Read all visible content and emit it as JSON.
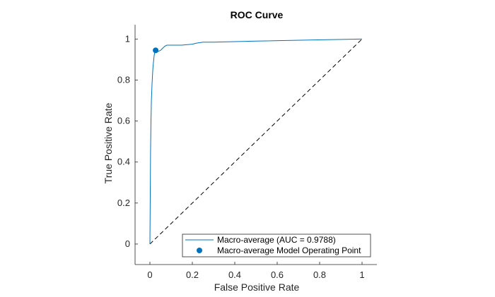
{
  "chart_data": {
    "type": "line",
    "title": "ROC Curve",
    "xlabel": "False Positive Rate",
    "ylabel": "True Positive Rate",
    "xlim": [
      -0.07,
      1.07
    ],
    "ylim": [
      -0.1,
      1.07
    ],
    "x_ticks": [
      0,
      0.2,
      0.4,
      0.6,
      0.8,
      1
    ],
    "x_tick_labels": [
      "0",
      "0.2",
      "0.4",
      "0.6",
      "0.8",
      "1"
    ],
    "y_ticks": [
      0,
      0.2,
      0.4,
      0.6,
      0.8,
      1
    ],
    "y_tick_labels": [
      "0",
      "0.2",
      "0.4",
      "0.6",
      "0.8",
      "1"
    ],
    "grid": false,
    "legend_position": "bottom-right",
    "series": [
      {
        "name": "Macro-average (AUC = 0.9788)",
        "kind": "line",
        "color": "#0072BD",
        "x": [
          0,
          0.003,
          0.005,
          0.007,
          0.01,
          0.013,
          0.015,
          0.018,
          0.02,
          0.025,
          0.03,
          0.04,
          0.05,
          0.06,
          0.07,
          0.08,
          0.1,
          0.15,
          0.2,
          0.22,
          0.25,
          0.3,
          0.5,
          0.75,
          1.0
        ],
        "y": [
          0,
          0.45,
          0.6,
          0.7,
          0.78,
          0.84,
          0.87,
          0.9,
          0.92,
          0.945,
          0.94,
          0.94,
          0.945,
          0.955,
          0.965,
          0.97,
          0.97,
          0.97,
          0.975,
          0.98,
          0.985,
          0.985,
          0.99,
          0.995,
          1.0
        ]
      },
      {
        "name": "Macro-average Model Operating Point",
        "kind": "point",
        "color": "#0072BD",
        "x": [
          0.027
        ],
        "y": [
          0.945
        ]
      }
    ],
    "reference_line": {
      "style": "dashed",
      "color": "#000000",
      "x": [
        0,
        1
      ],
      "y": [
        0,
        1
      ]
    }
  }
}
